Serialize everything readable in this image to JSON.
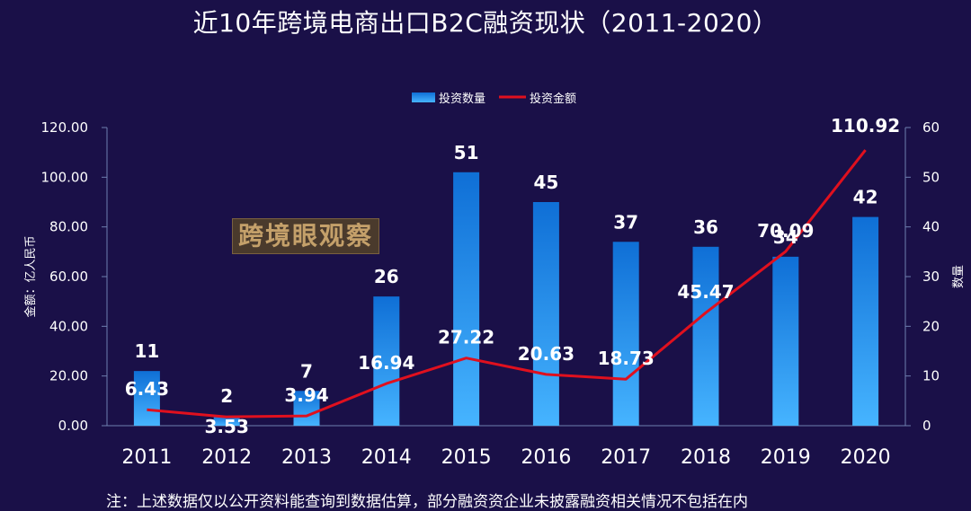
{
  "title": "近10年跨境电商出口B2C融资现状（2011-2020）",
  "watermark": "跨境眼观察",
  "note": "注：上述数据仅以公开资料能查询到数据估算，部分融资资企业未披露融资相关情况不包括在内",
  "colors": {
    "background": "#1a1048",
    "bar_top": "#0f6fd6",
    "bar_bottom": "#46b4ff",
    "line": "#e0101e",
    "axis": "#6f7fb0"
  },
  "chart_data": {
    "type": "bar",
    "categories": [
      "2011",
      "2012",
      "2013",
      "2014",
      "2015",
      "2016",
      "2017",
      "2018",
      "2019",
      "2020"
    ],
    "series": [
      {
        "name": "投资数量",
        "type": "bar",
        "axis": "right",
        "values": [
          11,
          2,
          7,
          26,
          51,
          45,
          37,
          36,
          34,
          42
        ]
      },
      {
        "name": "投资金额",
        "type": "line",
        "axis": "left",
        "values": [
          6.43,
          3.53,
          3.94,
          16.94,
          27.22,
          20.63,
          18.73,
          45.47,
          70.09,
          110.92
        ]
      }
    ],
    "ylabel_left": "金额：亿人民币",
    "ylabel_right": "数量",
    "ylim_left": [
      0,
      120
    ],
    "ylim_right": [
      0,
      60
    ],
    "yticks_left": [
      "0.00",
      "20.00",
      "40.00",
      "60.00",
      "80.00",
      "100.00",
      "120.00"
    ],
    "yticks_right": [
      "0",
      "10",
      "20",
      "30",
      "40",
      "50",
      "60"
    ],
    "legend_position": "top-center",
    "grid": false
  }
}
